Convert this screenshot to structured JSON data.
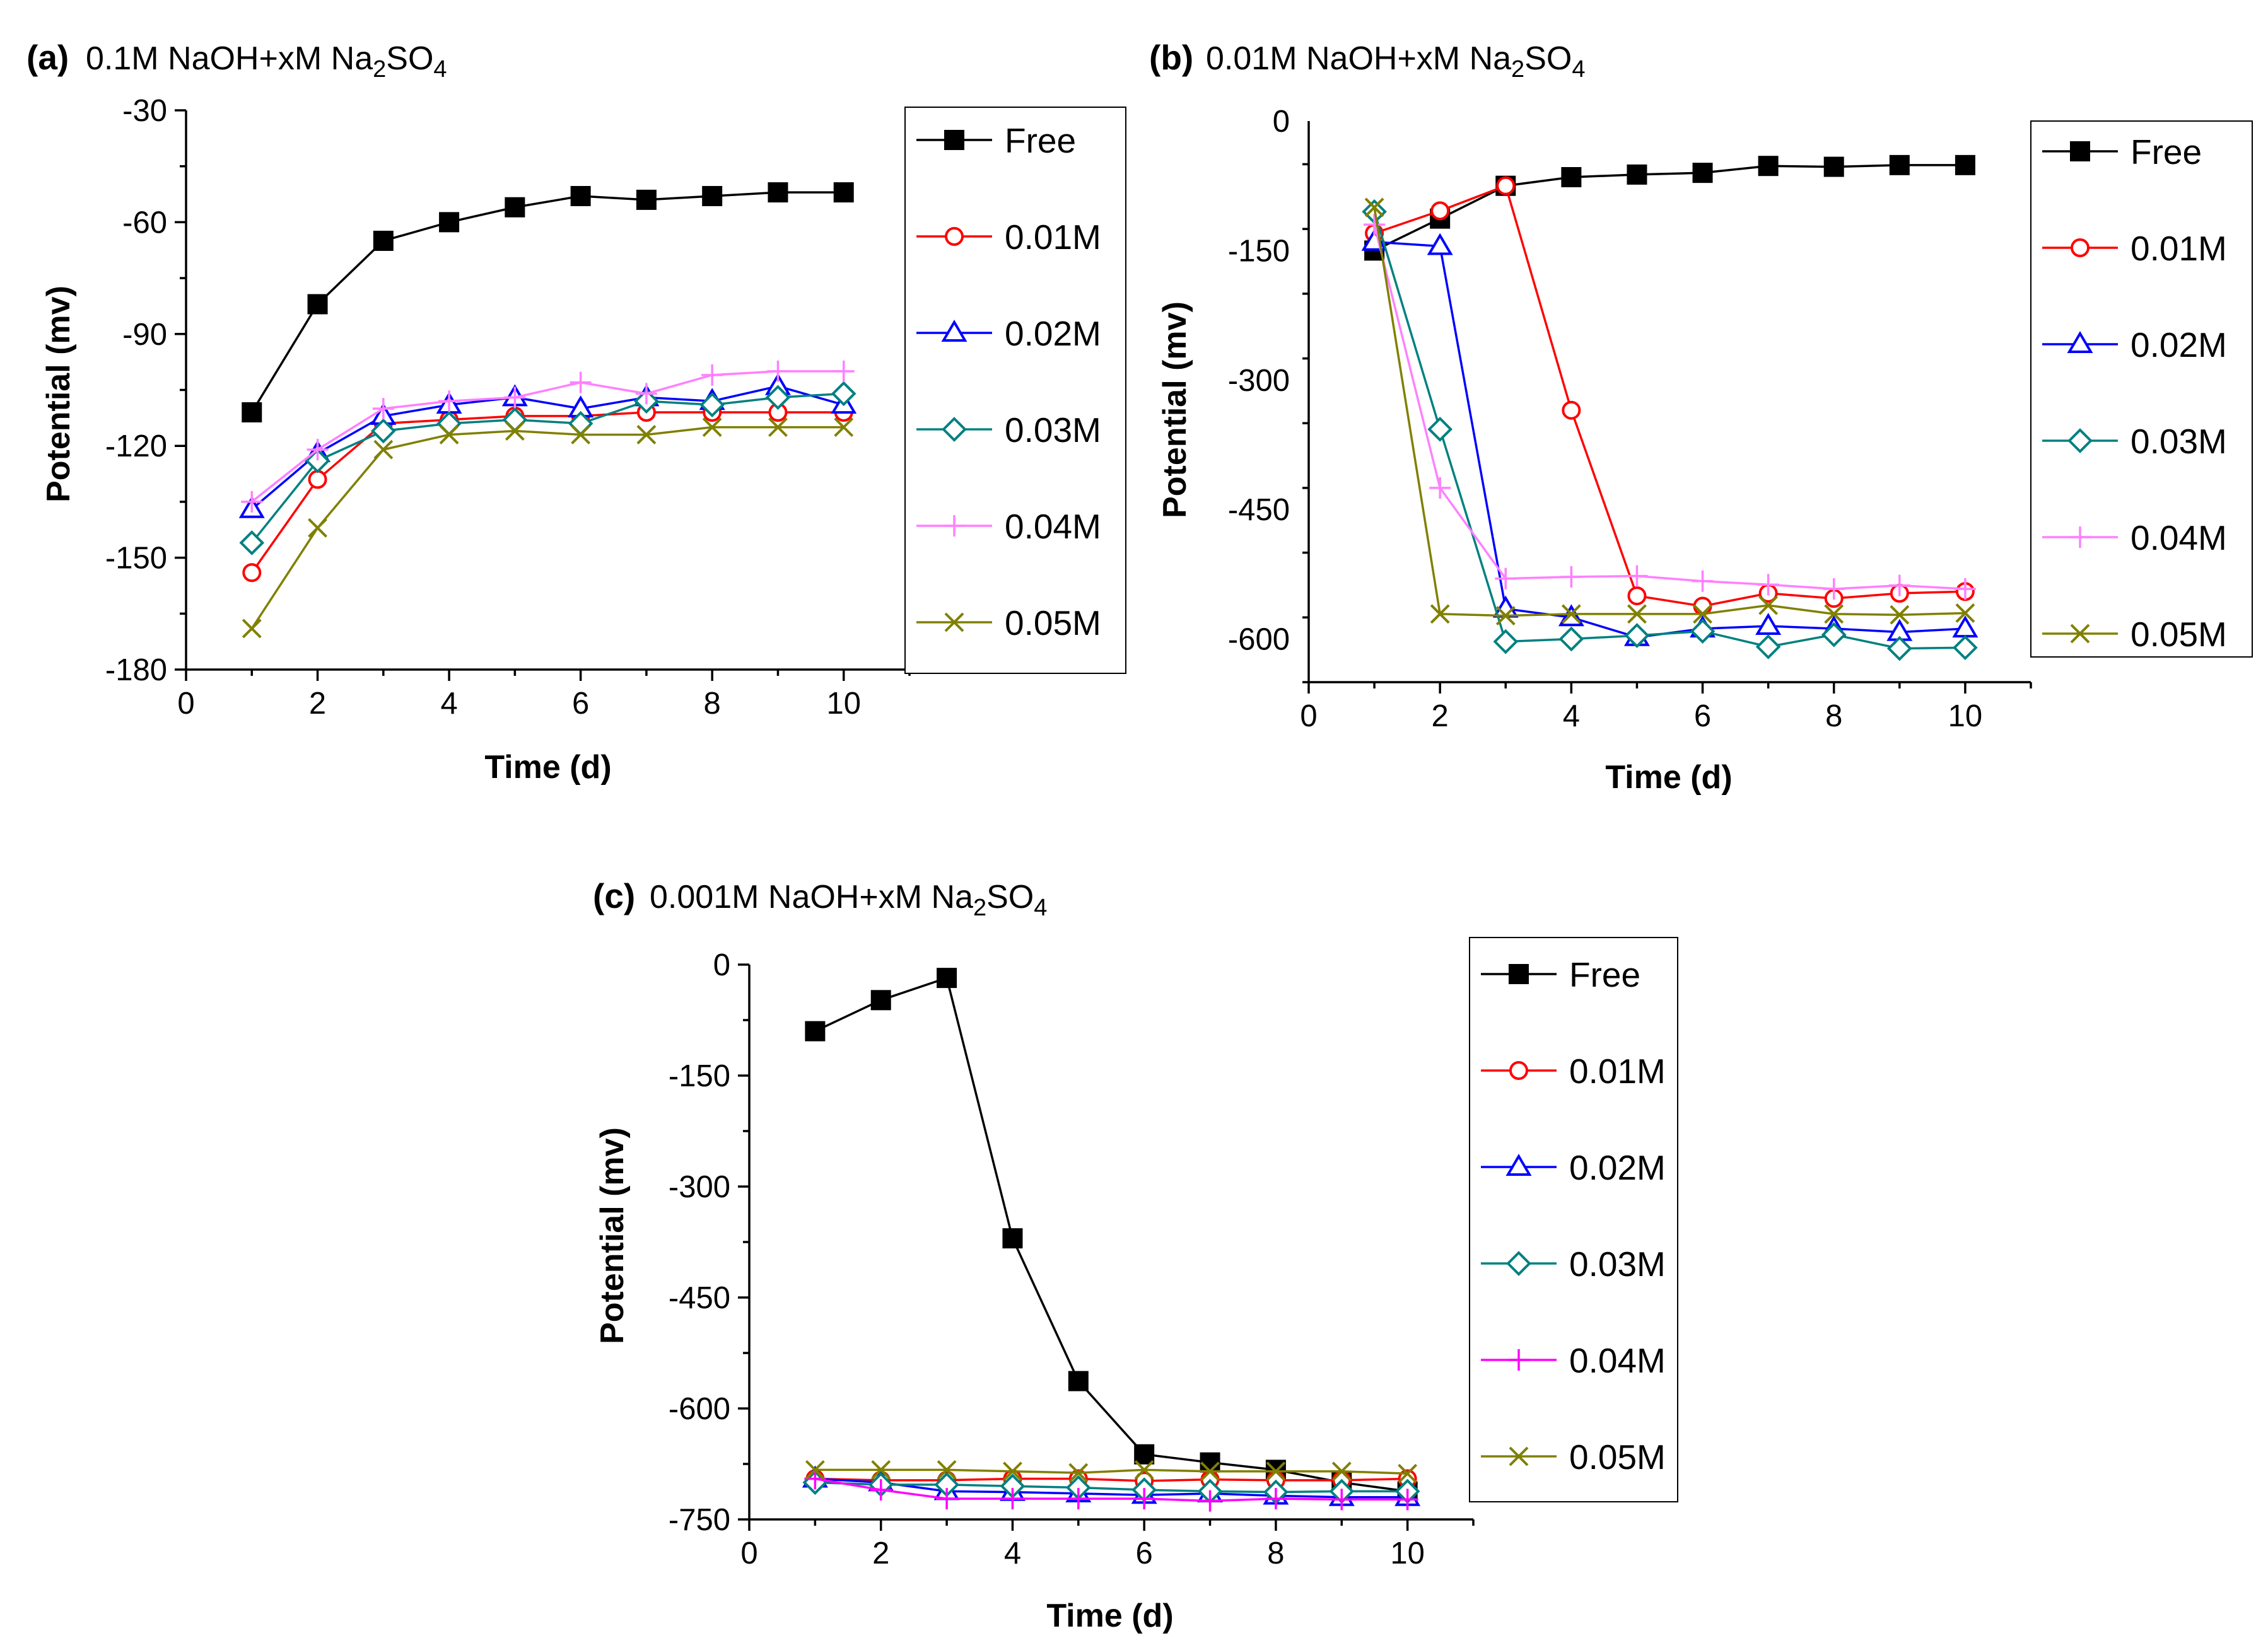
{
  "chart_data": [
    {
      "type": "line",
      "id": "a",
      "title": {
        "tag": "(a)",
        "pre": "0.1M NaOH+xM Na",
        "sub1": "2",
        "mid": "SO",
        "sub2": "4"
      },
      "xlabel": "Time (d)",
      "ylabel": "Potential (mv)",
      "xlim": [
        0,
        11
      ],
      "ylim": [
        -180,
        -30
      ],
      "xticks": [
        "0",
        "2",
        "4",
        "6",
        "8",
        "10"
      ],
      "yticks": [
        "-30",
        "-60",
        "-90",
        "-120",
        "-150",
        "-180"
      ],
      "x": [
        1,
        2,
        3,
        4,
        5,
        6,
        7,
        8,
        9,
        10
      ],
      "series": [
        {
          "name": "Free",
          "color": "#000000",
          "marker": "square-filled",
          "values": [
            -111,
            -82,
            -65,
            -60,
            -56,
            -53,
            -54,
            -53,
            -52,
            -52
          ]
        },
        {
          "name": "0.01M",
          "color": "#ff0000",
          "marker": "circle",
          "values": [
            -154,
            -129,
            -114,
            -113,
            -112,
            -112,
            -111,
            -111,
            -111,
            -111
          ]
        },
        {
          "name": "0.02M",
          "color": "#0000ff",
          "marker": "triangle",
          "values": [
            -137,
            -122,
            -112,
            -109,
            -107,
            -110,
            -107,
            -108,
            -104,
            -109
          ]
        },
        {
          "name": "0.03M",
          "color": "#008080",
          "marker": "diamond",
          "values": [
            -146,
            -124,
            -116,
            -114,
            -113,
            -114,
            -108,
            -109,
            -107,
            -106
          ]
        },
        {
          "name": "0.04M",
          "color": "#ff80ff",
          "marker": "plus",
          "values": [
            -135,
            -121,
            -110,
            -108,
            -107,
            -103,
            -106,
            -101,
            -100,
            -100
          ]
        },
        {
          "name": "0.05M",
          "color": "#808000",
          "marker": "x",
          "values": [
            -169,
            -142,
            -121,
            -117,
            -116,
            -117,
            -117,
            -115,
            -115,
            -115
          ]
        }
      ]
    },
    {
      "type": "line",
      "id": "b",
      "title": {
        "tag": "(b)",
        "pre": "0.01M NaOH+xM Na",
        "sub1": "2",
        "mid": "SO",
        "sub2": "4"
      },
      "xlabel": "Time (d)",
      "ylabel": "Potential (mv)",
      "xlim": [
        0,
        11
      ],
      "ylim": [
        -650,
        0
      ],
      "xticks": [
        "0",
        "2",
        "4",
        "6",
        "8",
        "10"
      ],
      "yticks": [
        "0",
        "-150",
        "-300",
        "-450",
        "-600"
      ],
      "x": [
        1,
        2,
        3,
        4,
        5,
        6,
        7,
        8,
        9,
        10
      ],
      "series": [
        {
          "name": "Free",
          "color": "#000000",
          "marker": "square-filled",
          "values": [
            -150,
            -113,
            -75,
            -65,
            -62,
            -60,
            -52,
            -53,
            -51,
            -51
          ]
        },
        {
          "name": "0.01M",
          "color": "#ff0000",
          "marker": "circle",
          "values": [
            -130,
            -104,
            -75,
            -335,
            -550,
            -562,
            -547,
            -553,
            -547,
            -545
          ]
        },
        {
          "name": "0.02M",
          "color": "#0000ff",
          "marker": "triangle",
          "values": [
            -140,
            -145,
            -565,
            -575,
            -598,
            -588,
            -585,
            -588,
            -592,
            -588
          ]
        },
        {
          "name": "0.03M",
          "color": "#008080",
          "marker": "diamond",
          "values": [
            -105,
            -357,
            -603,
            -600,
            -596,
            -591,
            -609,
            -595,
            -611,
            -610
          ]
        },
        {
          "name": "0.04M",
          "color": "#ff80ff",
          "marker": "plus",
          "values": [
            -120,
            -425,
            -530,
            -528,
            -527,
            -533,
            -537,
            -542,
            -538,
            -542
          ]
        },
        {
          "name": "0.05M",
          "color": "#808000",
          "marker": "x",
          "values": [
            -100,
            -571,
            -573,
            -571,
            -571,
            -571,
            -561,
            -571,
            -572,
            -570
          ]
        }
      ]
    },
    {
      "type": "line",
      "id": "c",
      "title": {
        "tag": "(c)",
        "pre": "0.001M NaOH+xM Na",
        "sub1": "2",
        "mid": "SO",
        "sub2": "4"
      },
      "xlabel": "Time (d)",
      "ylabel": "Potential (mv)",
      "xlim": [
        0,
        11
      ],
      "ylim": [
        -750,
        0
      ],
      "xticks": [
        "0",
        "2",
        "4",
        "6",
        "8",
        "10"
      ],
      "yticks": [
        "0",
        "-150",
        "-300",
        "-450",
        "-600",
        "-750"
      ],
      "x": [
        1,
        2,
        3,
        4,
        5,
        6,
        7,
        8,
        9,
        10
      ],
      "series": [
        {
          "name": "Free",
          "color": "#000000",
          "marker": "square-filled",
          "values": [
            -90,
            -48,
            -18,
            -370,
            -563,
            -662,
            -673,
            -683,
            -700,
            -712
          ]
        },
        {
          "name": "0.01M",
          "color": "#ff0000",
          "marker": "circle",
          "values": [
            -695,
            -697,
            -697,
            -695,
            -695,
            -698,
            -696,
            -697,
            -697,
            -695
          ]
        },
        {
          "name": "0.02M",
          "color": "#0000ff",
          "marker": "triangle",
          "values": [
            -695,
            -700,
            -712,
            -713,
            -715,
            -717,
            -715,
            -718,
            -720,
            -720
          ]
        },
        {
          "name": "0.03M",
          "color": "#008080",
          "marker": "diamond",
          "values": [
            -700,
            -703,
            -703,
            -705,
            -707,
            -710,
            -712,
            -713,
            -712,
            -712
          ]
        },
        {
          "name": "0.04M",
          "color": "#ff00ff",
          "marker": "plus",
          "values": [
            -695,
            -710,
            -722,
            -722,
            -722,
            -722,
            -725,
            -722,
            -723,
            -723
          ]
        },
        {
          "name": "0.05M",
          "color": "#808000",
          "marker": "x",
          "values": [
            -683,
            -683,
            -683,
            -685,
            -687,
            -683,
            -685,
            -685,
            -685,
            -688
          ]
        }
      ]
    }
  ]
}
